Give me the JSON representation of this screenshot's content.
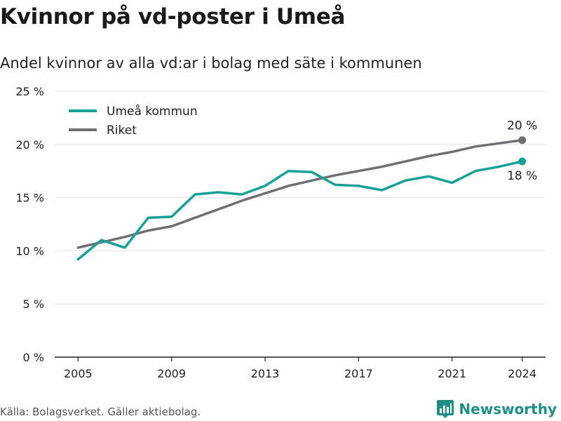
{
  "header": {
    "title": "Kvinnor på vd-poster i Umeå",
    "subtitle": "Andel kvinnor av alla vd:ar i bolag med säte i kommunen"
  },
  "footer": {
    "source": "Källa: Bolagsverket. Gäller aktiebolag.",
    "brand": "Newsworthy"
  },
  "colors": {
    "umea": "#16a096",
    "riket": "#6f6e73",
    "grid": "#e3e3e3",
    "brand": "#1f8f86"
  },
  "chart_data": {
    "type": "line",
    "x": [
      2005,
      2006,
      2007,
      2008,
      2009,
      2010,
      2011,
      2012,
      2013,
      2014,
      2015,
      2016,
      2017,
      2018,
      2019,
      2020,
      2021,
      2022,
      2023,
      2024
    ],
    "series": [
      {
        "name": "Umeå kommun",
        "color": "#16a096",
        "values": [
          9.2,
          11.0,
          10.3,
          13.1,
          13.2,
          15.3,
          15.5,
          15.3,
          16.1,
          17.5,
          17.4,
          16.2,
          16.1,
          15.7,
          16.6,
          17.0,
          16.4,
          17.5,
          17.9,
          18.4
        ],
        "end_label": "18 %"
      },
      {
        "name": "Riket",
        "color": "#6f6e73",
        "values": [
          10.3,
          10.8,
          11.3,
          11.9,
          12.3,
          13.1,
          13.9,
          14.7,
          15.4,
          16.1,
          16.6,
          17.1,
          17.5,
          17.9,
          18.4,
          18.9,
          19.3,
          19.8,
          20.1,
          20.4
        ],
        "end_label": "20 %"
      }
    ],
    "x_ticks": [
      2005,
      2009,
      2013,
      2017,
      2021,
      2024
    ],
    "x_tick_labels": [
      "2005",
      "2009",
      "2013",
      "2017",
      "2021",
      "2024"
    ],
    "y_ticks": [
      0,
      5,
      10,
      15,
      20,
      25
    ],
    "y_tick_labels": [
      "0 %",
      "5 %",
      "10 %",
      "15 %",
      "20 %",
      "25 %"
    ],
    "ylim": [
      0,
      25
    ],
    "xlim": [
      2004,
      2025
    ],
    "grid": true,
    "legend_position": "top-left"
  }
}
